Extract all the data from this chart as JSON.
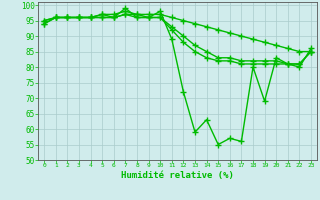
{
  "x": [
    0,
    1,
    2,
    3,
    4,
    5,
    6,
    7,
    8,
    9,
    10,
    11,
    12,
    13,
    14,
    15,
    16,
    17,
    18,
    19,
    20,
    21,
    22,
    23
  ],
  "line1": [
    94,
    96,
    96,
    96,
    96,
    96,
    96,
    99,
    96,
    96,
    98,
    89,
    72,
    59,
    63,
    55,
    57,
    56,
    80,
    69,
    83,
    81,
    80,
    86
  ],
  "line2": [
    95,
    96,
    96,
    96,
    96,
    97,
    97,
    98,
    97,
    97,
    97,
    96,
    95,
    94,
    93,
    92,
    91,
    90,
    89,
    88,
    87,
    86,
    85,
    85
  ],
  "line3": [
    95,
    96,
    96,
    96,
    96,
    97,
    96,
    97,
    97,
    96,
    96,
    93,
    90,
    87,
    85,
    83,
    83,
    82,
    82,
    82,
    82,
    81,
    81,
    85
  ],
  "line4": [
    94,
    96,
    96,
    96,
    96,
    96,
    96,
    97,
    96,
    96,
    96,
    92,
    88,
    85,
    83,
    82,
    82,
    81,
    81,
    81,
    81,
    81,
    81,
    85
  ],
  "line_color": "#00bb00",
  "bg_color": "#d0ecec",
  "grid_color": "#aacccc",
  "xlabel": "Humidité relative (%)",
  "ylim": [
    50,
    101
  ],
  "xlim": [
    -0.5,
    23.5
  ],
  "yticks": [
    50,
    55,
    60,
    65,
    70,
    75,
    80,
    85,
    90,
    95,
    100
  ],
  "xticks": [
    0,
    1,
    2,
    3,
    4,
    5,
    6,
    7,
    8,
    9,
    10,
    11,
    12,
    13,
    14,
    15,
    16,
    17,
    18,
    19,
    20,
    21,
    22,
    23
  ],
  "marker": "+",
  "markersize": 4,
  "linewidth": 1.0
}
